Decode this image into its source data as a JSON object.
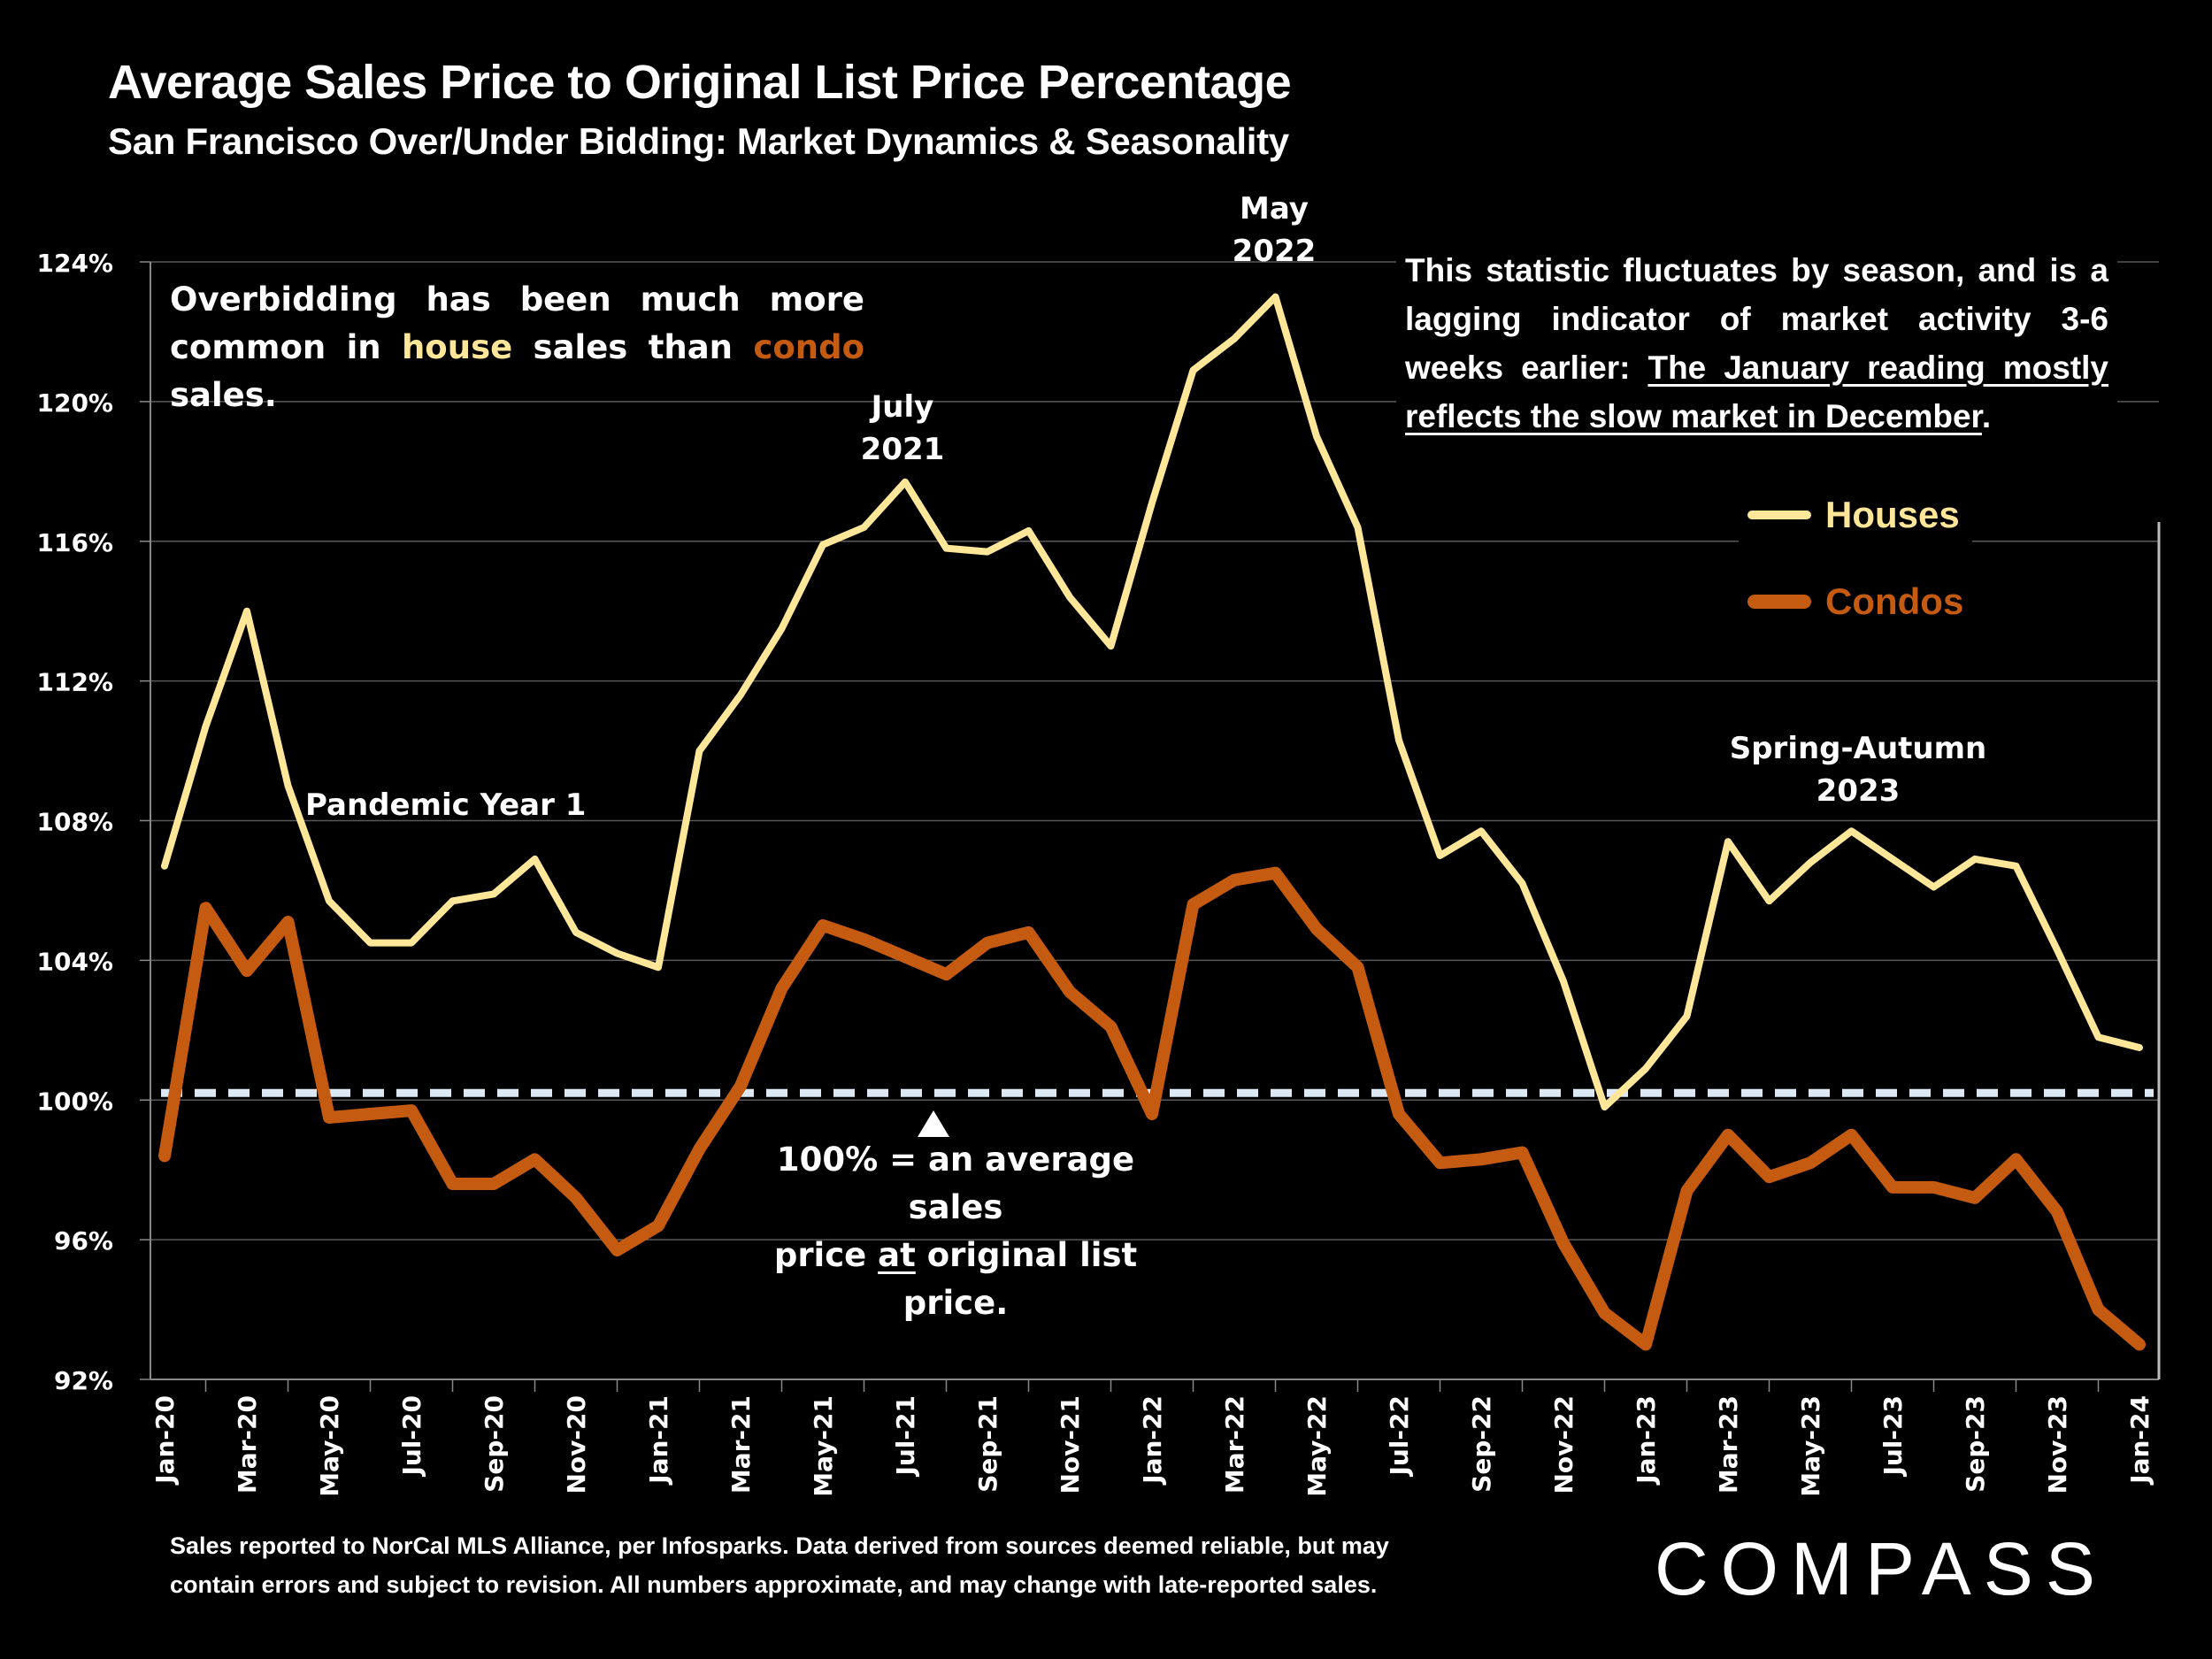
{
  "header": {
    "title": "Average Sales Price to Original List Price Percentage",
    "subtitle": "San Francisco Over/Under Bidding: Market Dynamics & Seasonality"
  },
  "notes": {
    "left_parts": [
      "Overbidding has been much more common in ",
      "house",
      " sales than ",
      "condo",
      " sales."
    ],
    "right_plain": "This statistic fluctuates by season, and is a lagging indicator of market activity 3-6 weeks earlier: ",
    "right_underlined": "The January reading mostly reflects the slow market in December",
    "right_end": ".",
    "hundred_line1": "100% = an average sales",
    "hundred_line2_pre": "price ",
    "hundred_line2_u": "at",
    "hundred_line2_post": " original list price."
  },
  "annotations": {
    "pandemic": "Pandemic Year 1",
    "july_2021_l1": "July",
    "july_2021_l2": "2021",
    "may_2022_l1": "May",
    "may_2022_l2": "2022",
    "spring_l1": "Spring-Autumn",
    "spring_l2": "2023"
  },
  "legend": {
    "houses": "Houses",
    "condos": "Condos"
  },
  "footer": {
    "line1": "Sales reported to NorCal MLS Alliance, per Infosparks. Data derived from sources deemed reliable, but may",
    "line2": "contain errors and subject to revision. All numbers approximate, and may change with late-reported sales."
  },
  "logo": "COMPASS",
  "colors": {
    "houses": "#FFE699",
    "condos": "#C55A11",
    "reference": "#DDE8F5",
    "grid": "#595959"
  },
  "chart_data": {
    "type": "line",
    "title": "Average Sales Price to Original List Price Percentage",
    "subtitle": "San Francisco Over/Under Bidding: Market Dynamics & Seasonality",
    "xlabel": "",
    "ylabel": "",
    "ylim": [
      92,
      124
    ],
    "yticks": [
      92,
      96,
      100,
      104,
      108,
      112,
      116,
      120,
      124
    ],
    "ytick_labels": [
      "92%",
      "96%",
      "100%",
      "104%",
      "108%",
      "112%",
      "116%",
      "120%",
      "124%"
    ],
    "grid": true,
    "legend_position": "right",
    "reference_line": {
      "value": 100,
      "style": "dashed",
      "label": "100% = an average sales price at original list price."
    },
    "x": [
      "Jan-20",
      "Feb-20",
      "Mar-20",
      "Apr-20",
      "May-20",
      "Jun-20",
      "Jul-20",
      "Aug-20",
      "Sep-20",
      "Oct-20",
      "Nov-20",
      "Dec-20",
      "Jan-21",
      "Feb-21",
      "Mar-21",
      "Apr-21",
      "May-21",
      "Jun-21",
      "Jul-21",
      "Aug-21",
      "Sep-21",
      "Oct-21",
      "Nov-21",
      "Dec-21",
      "Jan-22",
      "Feb-22",
      "Mar-22",
      "Apr-22",
      "May-22",
      "Jun-22",
      "Jul-22",
      "Aug-22",
      "Sep-22",
      "Oct-22",
      "Nov-22",
      "Dec-22",
      "Jan-23",
      "Feb-23",
      "Mar-23",
      "Apr-23",
      "May-23",
      "Jun-23",
      "Jul-23",
      "Aug-23",
      "Sep-23",
      "Oct-23",
      "Nov-23",
      "Dec-23",
      "Jan-24"
    ],
    "xtick_labels": [
      "Jan-20",
      "Mar-20",
      "May-20",
      "Jul-20",
      "Sep-20",
      "Nov-20",
      "Jan-21",
      "Mar-21",
      "May-21",
      "Jul-21",
      "Sep-21",
      "Nov-21",
      "Jan-22",
      "Mar-22",
      "May-22",
      "Jul-22",
      "Sep-22",
      "Nov-22",
      "Jan-23",
      "Mar-23",
      "May-23",
      "Jul-23",
      "Sep-23",
      "Nov-23",
      "Jan-24"
    ],
    "series": [
      {
        "name": "Houses",
        "values": [
          106.7,
          110.7,
          114.0,
          109.0,
          105.7,
          104.5,
          104.5,
          105.7,
          105.9,
          106.9,
          104.8,
          104.2,
          103.8,
          110.0,
          111.6,
          113.5,
          115.9,
          116.4,
          117.7,
          115.8,
          115.7,
          116.3,
          114.4,
          113.0,
          117.1,
          120.9,
          121.8,
          123.0,
          119.0,
          116.4,
          110.3,
          107.0,
          107.7,
          106.2,
          103.4,
          99.8,
          100.9,
          102.4,
          107.4,
          105.7,
          106.8,
          107.7,
          106.9,
          106.1,
          106.9,
          106.7,
          104.3,
          101.8,
          101.5
        ]
      },
      {
        "name": "Condos",
        "values": [
          98.4,
          105.5,
          103.7,
          105.1,
          99.5,
          99.6,
          99.7,
          97.6,
          97.6,
          98.3,
          97.2,
          95.7,
          96.4,
          98.6,
          100.4,
          103.2,
          105.0,
          104.6,
          104.1,
          103.6,
          104.5,
          104.8,
          103.1,
          102.1,
          99.6,
          105.6,
          106.3,
          106.5,
          104.9,
          103.8,
          99.6,
          98.2,
          98.3,
          98.5,
          95.9,
          93.9,
          93.0,
          97.4,
          99.0,
          97.8,
          98.2,
          99.0,
          97.5,
          97.5,
          97.2,
          98.3,
          96.8,
          94.0,
          93.0
        ]
      }
    ],
    "annotations": [
      "Pandemic Year 1",
      "July 2021",
      "May 2022",
      "Spring-Autumn 2023"
    ]
  }
}
